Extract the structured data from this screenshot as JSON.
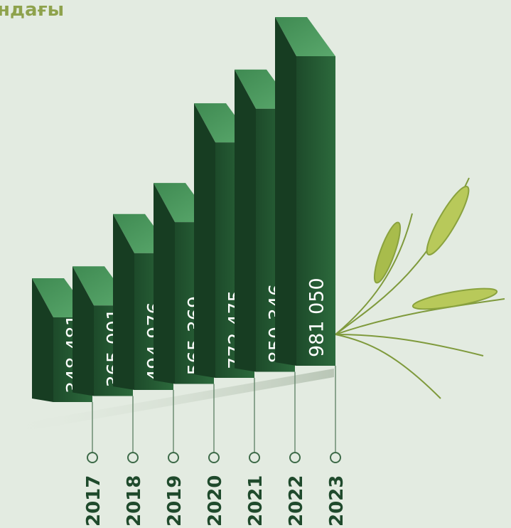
{
  "chart_data": {
    "type": "bar",
    "title": "ндағы",
    "categories": [
      "2017",
      "2018",
      "2019",
      "2020",
      "2021",
      "2022",
      "2023"
    ],
    "values": [
      348481,
      365001,
      494976,
      565369,
      772475,
      850346,
      981050
    ],
    "value_labels": [
      "348 481",
      "365 001",
      "494 976",
      "565 369",
      "772 475",
      "850 346",
      "981 050"
    ],
    "color": "#245a34"
  }
}
